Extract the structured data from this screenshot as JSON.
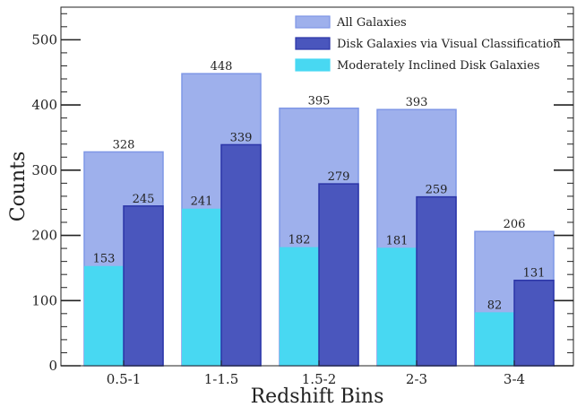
{
  "chart_data": {
    "type": "bar",
    "title": "",
    "xlabel": "Redshift Bins",
    "ylabel": "Counts",
    "categories": [
      "0.5-1",
      "1-1.5",
      "1.5-2",
      "2-3",
      "3-4"
    ],
    "ylim": [
      0,
      550
    ],
    "yticks": [
      0,
      100,
      200,
      300,
      400,
      500
    ],
    "grid": false,
    "legend_position": "top-right",
    "series": [
      {
        "name": "All Galaxies",
        "values": [
          328,
          448,
          395,
          393,
          206
        ],
        "color": "#9eb0ec",
        "edge": "#7f97e6"
      },
      {
        "name": "Disk Galaxies via Visual Classification",
        "values": [
          245,
          339,
          279,
          259,
          131
        ],
        "color": "#4a56bd",
        "edge": "#2b35a8"
      },
      {
        "name": "Moderately Inclined Disk Galaxies",
        "values": [
          153,
          241,
          182,
          181,
          82
        ],
        "color": "#48d8f2",
        "edge": "#48d8f2"
      }
    ]
  }
}
